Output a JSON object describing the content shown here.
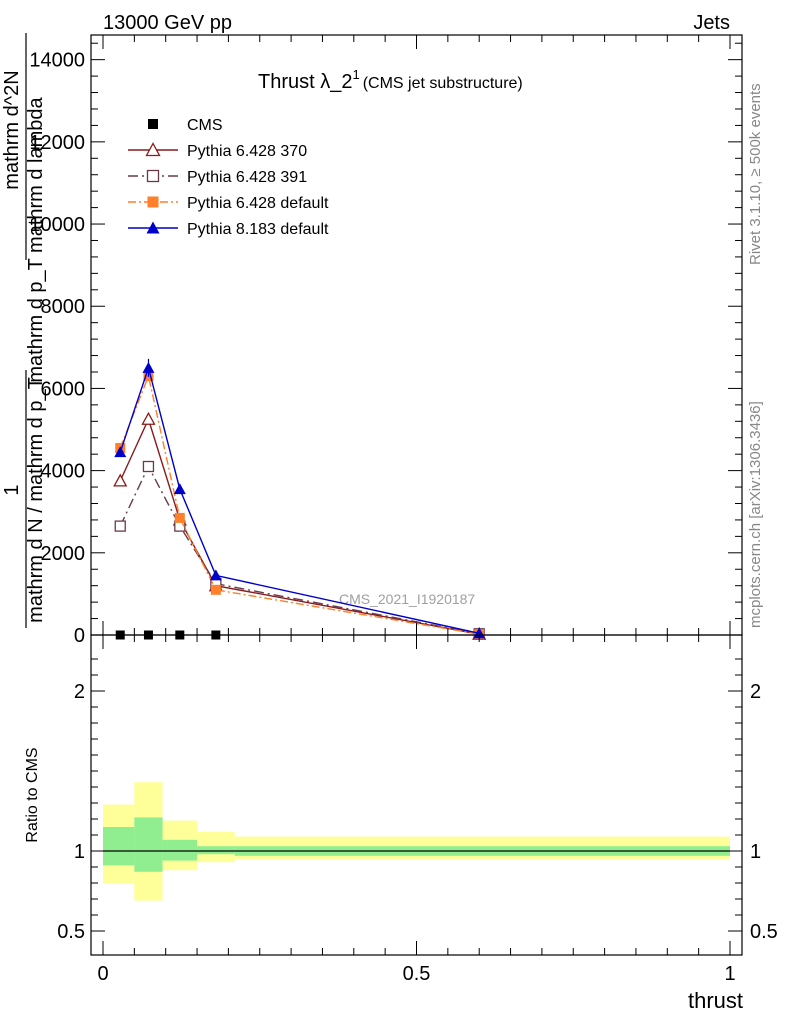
{
  "header": {
    "left": "13000 GeV pp",
    "right": "Jets"
  },
  "side": {
    "rivet": "Rivet 3.1.10, ≥ 500k events",
    "mcplots": "mcplots.cern.ch [arXiv:1306.3436]"
  },
  "watermark": "CMS_2021_I1920187",
  "chart_data": [
    {
      "type": "line",
      "title": "Thrust λ_2",
      "title_sup": "1",
      "subtitle": "(CMS jet substructure)",
      "ylabel_num": "1",
      "ylabel_den": "mathrm d N / mathrm d p_T",
      "ylabel_frac": "mathrm d^2N / mathrm d p_T mathrm d lambda",
      "ylabel_frac_num": "mathrm d^2N",
      "ylabel_frac_den": "mathrm d p_T mathrm d lambda",
      "xlim": [
        0,
        1
      ],
      "ylim": [
        0,
        14600
      ],
      "yticks": [
        {
          "v": 0,
          "label": "0"
        },
        {
          "v": 2000,
          "label": "2000"
        },
        {
          "v": 4000,
          "label": "4000"
        },
        {
          "v": 6000,
          "label": "6000"
        },
        {
          "v": 8000,
          "label": "8000"
        },
        {
          "v": 10000,
          "label": "10000"
        },
        {
          "v": 12000,
          "label": "12000"
        },
        {
          "v": 14000,
          "label": "14000"
        }
      ],
      "x": [
        0.0275,
        0.0725,
        0.1225,
        0.18,
        0.6
      ],
      "series": [
        {
          "name": "CMS",
          "color": "#000000",
          "marker": "square",
          "dash": "none",
          "values": [
            0,
            0,
            0,
            0,
            0
          ]
        },
        {
          "name": "Pythia 6.428 370",
          "color": "#8b1a1a",
          "marker": "triangle-open",
          "dash": "none",
          "values": [
            3750,
            5250,
            2800,
            1200,
            20
          ]
        },
        {
          "name": "Pythia 6.428 391",
          "color": "#6b3a4a",
          "marker": "square-open",
          "dash": "10,4,2,4",
          "values": [
            2650,
            4100,
            2650,
            1250,
            30
          ]
        },
        {
          "name": "Pythia 6.428 default",
          "color": "#ff7f2a",
          "marker": "square",
          "dash": "8,3,2,3",
          "values": [
            4550,
            6300,
            2850,
            1100,
            20
          ]
        },
        {
          "name": "Pythia 8.183 default",
          "color": "#0000cc",
          "marker": "triangle",
          "dash": "none",
          "values": [
            4450,
            6500,
            3550,
            1450,
            40
          ]
        }
      ]
    },
    {
      "type": "area",
      "ylabel": "Ratio to CMS",
      "xlabel": "thrust",
      "xlim": [
        0,
        1
      ],
      "ylim": [
        0.35,
        2.35
      ],
      "xticks": [
        {
          "v": 0,
          "label": "0"
        },
        {
          "v": 0.5,
          "label": "0.5"
        },
        {
          "v": 1,
          "label": "1"
        }
      ],
      "yticks": [
        {
          "v": 0.5,
          "label": "0.5"
        },
        {
          "v": 1,
          "label": "1"
        },
        {
          "v": 2,
          "label": "2"
        }
      ],
      "bins": [
        {
          "lo": 0.0,
          "hi": 0.05,
          "inner": [
            0.91,
            1.15
          ],
          "outer": [
            0.8,
            1.29
          ]
        },
        {
          "lo": 0.05,
          "hi": 0.095,
          "inner": [
            0.87,
            1.21
          ],
          "outer": [
            0.69,
            1.43
          ]
        },
        {
          "lo": 0.095,
          "hi": 0.15,
          "inner": [
            0.94,
            1.07
          ],
          "outer": [
            0.88,
            1.19
          ]
        },
        {
          "lo": 0.15,
          "hi": 0.21,
          "inner": [
            0.98,
            1.03
          ],
          "outer": [
            0.93,
            1.12
          ]
        },
        {
          "lo": 0.21,
          "hi": 1.0,
          "inner": [
            0.97,
            1.03
          ],
          "outer": [
            0.95,
            1.09
          ]
        }
      ],
      "inner_color": "#90ee90",
      "outer_color": "#ffff99"
    }
  ]
}
